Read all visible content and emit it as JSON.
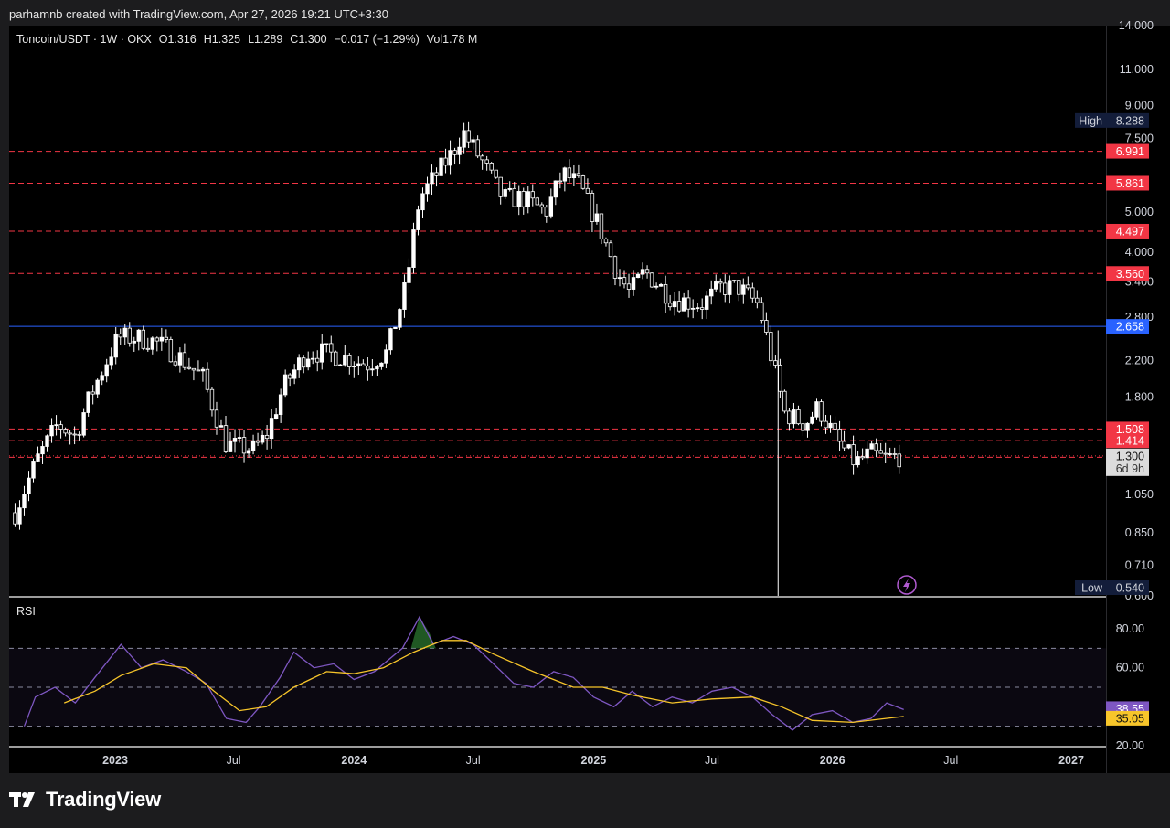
{
  "header": {
    "credit": "parhamnb created with TradingView.com, Apr 27, 2026 19:21 UTC+3:30"
  },
  "legend": {
    "symbol": "Toncoin/USDT · 1W · OKX",
    "open": "O1.316",
    "high": "H1.325",
    "low": "L1.289",
    "close": "C1.300",
    "change": "−0.017 (−1.29%)",
    "volume": "Vol1.78 M"
  },
  "footer": {
    "brand": "TradingView",
    "logo_icon": "tradingview-logo-icon"
  },
  "colors": {
    "bg": "#000000",
    "candle": "#ffffff",
    "level": "#f23645",
    "support": "#2962ff",
    "rsi": "#7e57c2",
    "rsi_ma": "#f7c52a"
  },
  "chart_data": [
    {
      "type": "candlestick",
      "title": "Toncoin/USDT · 1W · OKX",
      "scale": "log",
      "price_ticks": [
        "14.000",
        "11.000",
        "9.000",
        "7.500",
        "5.000",
        "4.000",
        "3.400",
        "2.800",
        "2.200",
        "1.800",
        "1.050",
        "0.850",
        "0.710",
        "0.600"
      ],
      "x_ticks": [
        {
          "label": "2023",
          "date": "2023-01-01"
        },
        {
          "label": "Jul",
          "date": "2023-07-01"
        },
        {
          "label": "2024",
          "date": "2024-01-01"
        },
        {
          "label": "Jul",
          "date": "2024-07-01"
        },
        {
          "label": "2025",
          "date": "2025-01-01"
        },
        {
          "label": "Jul",
          "date": "2025-07-01"
        },
        {
          "label": "2026",
          "date": "2026-01-01"
        },
        {
          "label": "Jul",
          "date": "2026-07-01"
        },
        {
          "label": "2027",
          "date": "2027-01-01"
        }
      ],
      "high_marker": {
        "label": "High",
        "value": "8.288"
      },
      "low_marker": {
        "label": "Low",
        "value": "0.540"
      },
      "horizontal_levels": [
        {
          "value": "6.991",
          "style": "dashed-red"
        },
        {
          "value": "5.861",
          "style": "dashed-red"
        },
        {
          "value": "4.497",
          "style": "dashed-red"
        },
        {
          "value": "3.560",
          "style": "dashed-red"
        },
        {
          "value": "2.658",
          "style": "solid-blue"
        },
        {
          "value": "1.508",
          "style": "dashed-red"
        },
        {
          "value": "1.414",
          "style": "dashed-red"
        },
        {
          "value": "1.290",
          "style": "dashed-red"
        }
      ],
      "last_price": {
        "value": "1.300",
        "countdown": "6d 9h"
      },
      "close_path": [
        [
          "2022-08-01",
          0.95
        ],
        [
          "2022-09-01",
          1.25
        ],
        [
          "2022-10-05",
          1.55
        ],
        [
          "2022-11-01",
          1.45
        ],
        [
          "2022-11-20",
          1.75
        ],
        [
          "2022-12-10",
          2.05
        ],
        [
          "2023-01-05",
          2.5
        ],
        [
          "2023-02-01",
          2.5
        ],
        [
          "2023-03-01",
          2.45
        ],
        [
          "2023-04-01",
          2.3
        ],
        [
          "2023-05-15",
          2.0
        ],
        [
          "2023-06-20",
          1.38
        ],
        [
          "2023-08-01",
          1.35
        ],
        [
          "2023-08-20",
          1.45
        ],
        [
          "2023-09-15",
          1.9
        ],
        [
          "2023-10-20",
          2.3
        ],
        [
          "2023-11-15",
          2.3
        ],
        [
          "2023-12-15",
          2.25
        ],
        [
          "2024-01-20",
          2.15
        ],
        [
          "2024-02-20",
          2.3
        ],
        [
          "2024-03-20",
          3.3
        ],
        [
          "2024-04-10",
          5.4
        ],
        [
          "2024-05-01",
          6.0
        ],
        [
          "2024-06-01",
          7.0
        ],
        [
          "2024-06-15",
          7.8
        ],
        [
          "2024-07-15",
          6.6
        ],
        [
          "2024-08-15",
          5.4
        ],
        [
          "2024-09-15",
          5.4
        ],
        [
          "2024-10-20",
          5.0
        ],
        [
          "2024-11-15",
          6.2
        ],
        [
          "2024-12-10",
          5.8
        ],
        [
          "2025-01-10",
          4.6
        ],
        [
          "2025-02-05",
          3.6
        ],
        [
          "2025-02-25",
          3.2
        ],
        [
          "2025-03-20",
          3.6
        ],
        [
          "2025-05-01",
          3.1
        ],
        [
          "2025-06-15",
          3.0
        ],
        [
          "2025-07-15",
          3.3
        ],
        [
          "2025-08-10",
          3.3
        ],
        [
          "2025-09-10",
          3.0
        ],
        [
          "2025-10-01",
          2.2
        ],
        [
          "2025-10-20",
          1.65
        ],
        [
          "2025-11-20",
          1.55
        ],
        [
          "2025-12-10",
          1.7
        ],
        [
          "2026-01-10",
          1.4
        ],
        [
          "2026-02-05",
          1.25
        ],
        [
          "2026-03-01",
          1.32
        ],
        [
          "2026-03-20",
          1.28
        ],
        [
          "2026-04-15",
          1.3
        ]
      ]
    },
    {
      "type": "line",
      "title": "RSI",
      "y_ticks": [
        "80.00",
        "60.00",
        "20.00"
      ],
      "ylim": [
        20,
        90
      ],
      "bands": [
        70,
        50,
        30
      ],
      "series": [
        {
          "values": [
            [
              "2022-08-15",
              30
            ],
            [
              "2022-09-01",
              45
            ],
            [
              "2022-10-01",
              50
            ],
            [
              "2022-11-01",
              42
            ],
            [
              "2022-12-01",
              55
            ],
            [
              "2023-01-10",
              72
            ],
            [
              "2023-02-10",
              60
            ],
            [
              "2023-03-15",
              64
            ],
            [
              "2023-04-20",
              58
            ],
            [
              "2023-05-20",
              52
            ],
            [
              "2023-06-20",
              34
            ],
            [
              "2023-07-20",
              32
            ],
            [
              "2023-08-10",
              40
            ],
            [
              "2023-09-10",
              55
            ],
            [
              "2023-10-01",
              68
            ],
            [
              "2023-11-01",
              60
            ],
            [
              "2023-12-01",
              62
            ],
            [
              "2024-01-01",
              54
            ],
            [
              "2024-02-01",
              58
            ],
            [
              "2024-03-15",
              70
            ],
            [
              "2024-04-10",
              86
            ],
            [
              "2024-05-01",
              72
            ],
            [
              "2024-06-01",
              76
            ],
            [
              "2024-07-01",
              72
            ],
            [
              "2024-08-01",
              62
            ],
            [
              "2024-09-01",
              52
            ],
            [
              "2024-10-01",
              50
            ],
            [
              "2024-11-01",
              58
            ],
            [
              "2024-12-01",
              55
            ],
            [
              "2025-01-01",
              45
            ],
            [
              "2025-02-01",
              40
            ],
            [
              "2025-03-01",
              48
            ],
            [
              "2025-04-01",
              40
            ],
            [
              "2025-05-01",
              45
            ],
            [
              "2025-06-01",
              42
            ],
            [
              "2025-07-01",
              48
            ],
            [
              "2025-08-01",
              50
            ],
            [
              "2025-09-01",
              45
            ],
            [
              "2025-10-01",
              36
            ],
            [
              "2025-11-01",
              28
            ],
            [
              "2025-12-01",
              36
            ],
            [
              "2026-01-01",
              38
            ],
            [
              "2026-02-01",
              32
            ],
            [
              "2026-03-01",
              34
            ],
            [
              "2026-03-25",
              42
            ],
            [
              "2026-04-20",
              38.55
            ]
          ],
          "last": "38.55"
        },
        {
          "values": [
            [
              "2022-10-15",
              42
            ],
            [
              "2022-12-01",
              48
            ],
            [
              "2023-01-10",
              56
            ],
            [
              "2023-03-01",
              62
            ],
            [
              "2023-04-20",
              60
            ],
            [
              "2023-06-01",
              48
            ],
            [
              "2023-07-10",
              38
            ],
            [
              "2023-08-20",
              40
            ],
            [
              "2023-10-01",
              50
            ],
            [
              "2023-11-20",
              58
            ],
            [
              "2024-01-01",
              57
            ],
            [
              "2024-02-15",
              60
            ],
            [
              "2024-04-01",
              68
            ],
            [
              "2024-05-15",
              74
            ],
            [
              "2024-06-20",
              74
            ],
            [
              "2024-08-01",
              67
            ],
            [
              "2024-10-01",
              58
            ],
            [
              "2024-12-01",
              50
            ],
            [
              "2025-01-15",
              50
            ],
            [
              "2025-03-01",
              46
            ],
            [
              "2025-05-01",
              42
            ],
            [
              "2025-07-01",
              44
            ],
            [
              "2025-09-01",
              45
            ],
            [
              "2025-10-15",
              40
            ],
            [
              "2025-12-01",
              33
            ],
            [
              "2026-02-01",
              32
            ],
            [
              "2026-04-20",
              35.05
            ]
          ],
          "last": "35.05"
        }
      ]
    }
  ]
}
